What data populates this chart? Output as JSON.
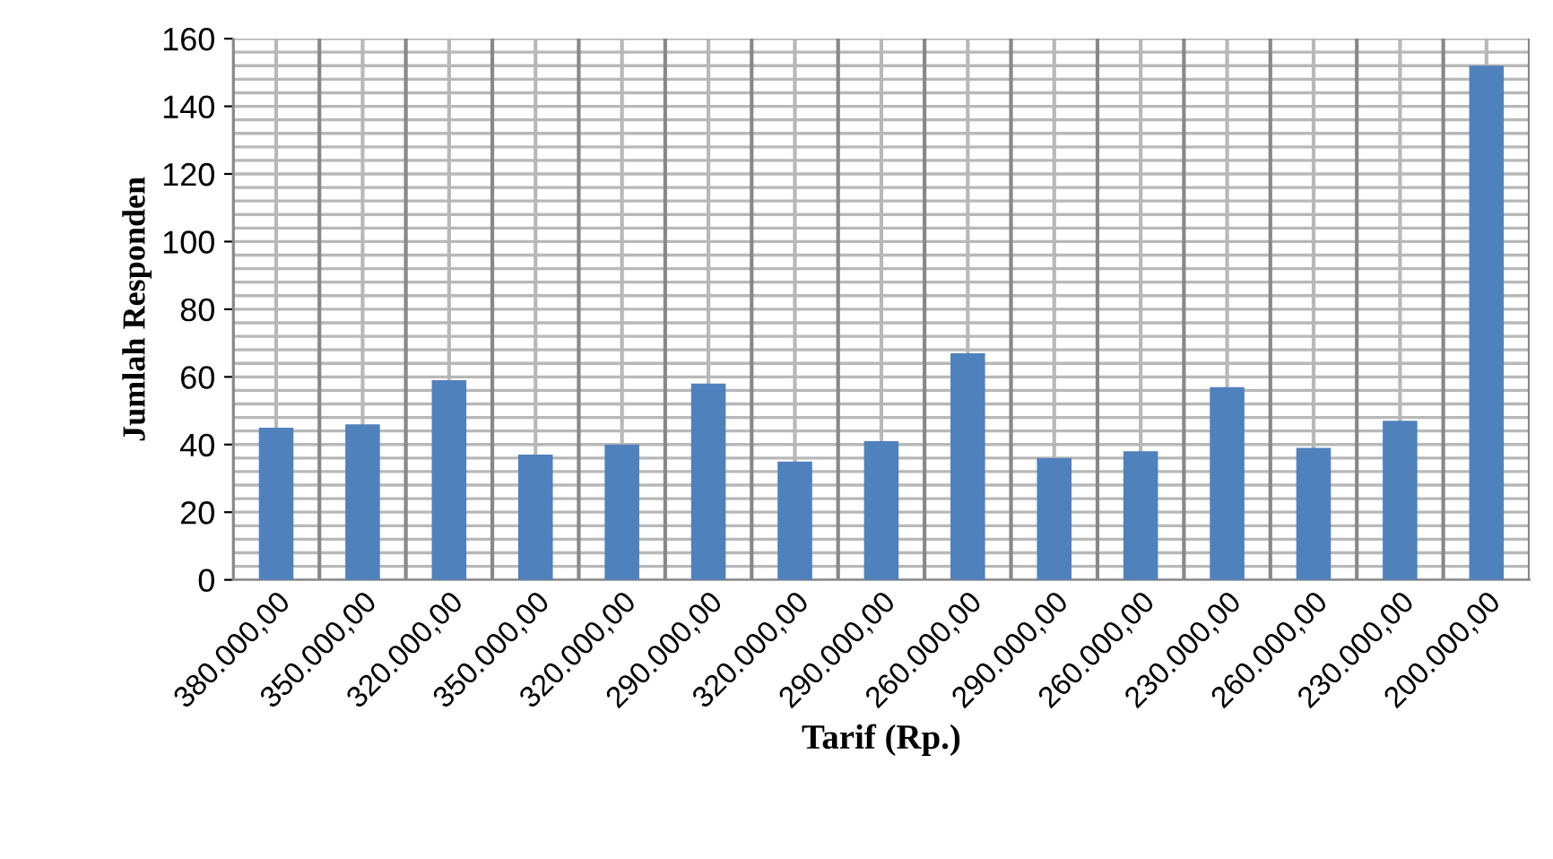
{
  "chart_data": {
    "type": "bar",
    "xlabel": "Tarif (Rp.)",
    "ylabel": "Jumlah Responden",
    "categories": [
      "380.000,00",
      "350.000,00",
      "320.000,00",
      "350.000,00",
      "320.000,00",
      "290.000,00",
      "320.000,00",
      "290.000,00",
      "260.000,00",
      "290.000,00",
      "260.000,00",
      "230.000,00",
      "260.000,00",
      "230.000,00",
      "200.000,00"
    ],
    "values": [
      45,
      46,
      59,
      37,
      40,
      58,
      35,
      41,
      67,
      36,
      38,
      57,
      39,
      47,
      152
    ],
    "color": "#4f81bd",
    "ylim": [
      0,
      160
    ],
    "yticks": [
      0,
      20,
      40,
      60,
      80,
      100,
      120,
      140,
      160
    ],
    "grid": true
  }
}
